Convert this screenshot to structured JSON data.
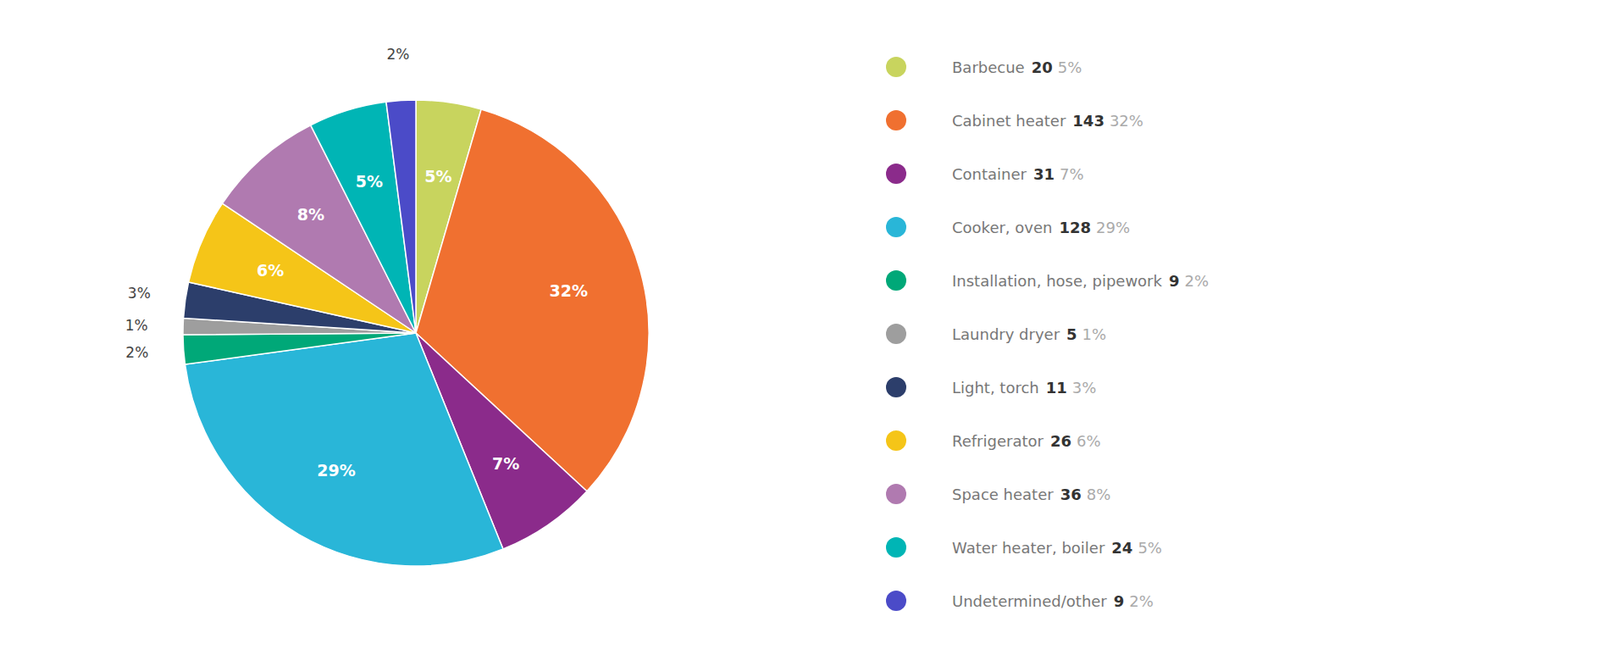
{
  "chart_data": {
    "type": "pie",
    "categories": [
      "Barbecue",
      "Cabinet heater",
      "Container",
      "Cooker, oven",
      "Installation, hose, pipework",
      "Laundry dryer",
      "Light, torch",
      "Refrigerator",
      "Space heater",
      "Water heater, boiler",
      "Undetermined/other"
    ],
    "values": [
      20,
      143,
      31,
      128,
      9,
      5,
      11,
      26,
      36,
      24,
      9
    ],
    "percentages": [
      5,
      32,
      7,
      29,
      2,
      1,
      3,
      6,
      8,
      5,
      2
    ],
    "percentage_labels": [
      "5%",
      "32%",
      "7%",
      "29%",
      "2%",
      "1%",
      "3%",
      "6%",
      "8%",
      "5%",
      "2%"
    ],
    "colors": [
      "#c8d45e",
      "#f07030",
      "#8b2b8b",
      "#29b6d8",
      "#00a878",
      "#9e9e9e",
      "#2c3e6b",
      "#f5c518",
      "#b07ab0",
      "#00b5b5",
      "#4b4bc8"
    ],
    "legend": "right"
  }
}
